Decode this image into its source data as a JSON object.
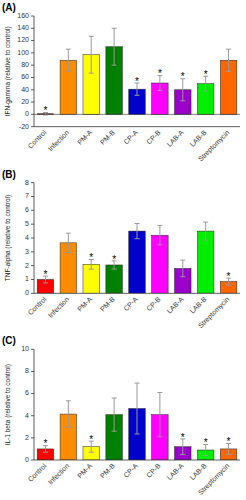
{
  "chart_data": [
    {
      "type": "bar",
      "title": "(A)",
      "ylabel": "IFN-gamma (relative to control)",
      "categories": [
        "Control",
        "Infection",
        "PM-A",
        "PM-B",
        "CP-A",
        "CP-B",
        "LAB-A",
        "LAB-B",
        "Streptomycin"
      ],
      "values": [
        1,
        88,
        97,
        110,
        41,
        51,
        40,
        50,
        88
      ],
      "errors": [
        2,
        18,
        30,
        30,
        10,
        12,
        18,
        12,
        18
      ],
      "colors": [
        "#ff0000",
        "#ff8c00",
        "#ffff00",
        "#008000",
        "#0000cc",
        "#ff00ff",
        "#9900cc",
        "#00ee00",
        "#ff6600"
      ],
      "annotations": [
        {
          "text": "*",
          "x": "Control"
        },
        {
          "text": "*",
          "x": "CP-A"
        },
        {
          "text": "*",
          "x": "CP-B"
        },
        {
          "text": "*",
          "x": "LAB-A"
        },
        {
          "text": "*",
          "x": "LAB-B"
        }
      ],
      "ylim": [
        -20,
        160
      ],
      "yticks": [
        -20,
        0,
        20,
        40,
        60,
        80,
        100,
        120,
        140,
        160
      ],
      "grid": false
    },
    {
      "type": "bar",
      "title": "(B)",
      "ylabel": "TNF-alpha (relative to control)",
      "categories": [
        "Control",
        "Infection",
        "PM-A",
        "PM-B",
        "CP-A",
        "CP-B",
        "LAB-A",
        "LAB-B",
        "Streptomycin"
      ],
      "values": [
        1.0,
        3.65,
        2.1,
        2.05,
        4.5,
        4.2,
        1.8,
        4.5,
        0.85
      ],
      "errors": [
        0.25,
        0.7,
        0.35,
        0.3,
        0.55,
        0.7,
        0.6,
        0.65,
        0.25
      ],
      "colors": [
        "#ff0000",
        "#ff8c00",
        "#ffff00",
        "#008000",
        "#0000cc",
        "#ff00ff",
        "#9900cc",
        "#00ee00",
        "#ff6600"
      ],
      "annotations": [
        {
          "text": "*",
          "x": "Control"
        },
        {
          "text": "*",
          "x": "PM-A"
        },
        {
          "text": "*",
          "x": "PM-B"
        },
        {
          "text": "*",
          "x": "Streptomycin"
        }
      ],
      "ylim": [
        0,
        8
      ],
      "yticks": [
        0,
        1,
        2,
        3,
        4,
        5,
        6,
        7,
        8
      ],
      "grid": false
    },
    {
      "type": "bar",
      "title": "(C)",
      "ylabel": "IL-1 beta (relative to control)",
      "categories": [
        "Control",
        "Infection",
        "PM-A",
        "PM-B",
        "CP-A",
        "CP-B",
        "LAB-A",
        "LAB-B",
        "Streptomycin"
      ],
      "values": [
        1.0,
        4.15,
        1.2,
        4.1,
        4.65,
        4.1,
        1.2,
        0.9,
        1.0
      ],
      "errors": [
        0.3,
        1.2,
        0.5,
        1.5,
        2.3,
        2.0,
        0.7,
        0.5,
        0.5
      ],
      "colors": [
        "#ff0000",
        "#ff8c00",
        "#ffff00",
        "#008000",
        "#0000cc",
        "#ff00ff",
        "#9900cc",
        "#00ee00",
        "#ff6600"
      ],
      "annotations": [
        {
          "text": "*",
          "x": "Control"
        },
        {
          "text": "*",
          "x": "PM-A"
        },
        {
          "text": "*",
          "x": "LAB-A"
        },
        {
          "text": "*",
          "x": "LAB-B"
        },
        {
          "text": "*",
          "x": "Streptomycin"
        }
      ],
      "ylim": [
        0,
        10
      ],
      "yticks": [
        0,
        2,
        4,
        6,
        8,
        10
      ],
      "grid": false
    }
  ]
}
